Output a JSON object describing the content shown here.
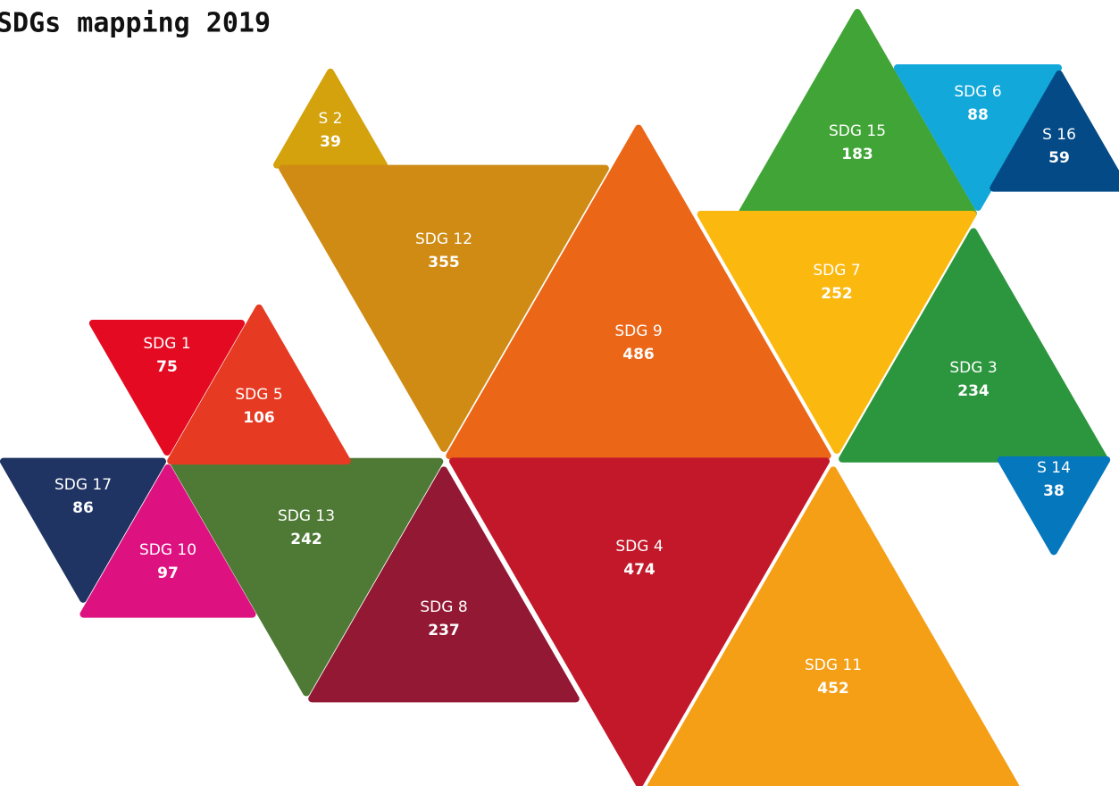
{
  "chart_data": {
    "type": "triangle-mosaic",
    "title": "SDGs mapping 2019",
    "categories": [
      "S 2",
      "SDG 12",
      "SDG 9",
      "SDG 15",
      "SDG 6",
      "S 16",
      "SDG 7",
      "SDG 3",
      "S 14",
      "SDG 11",
      "SDG 4",
      "SDG 8",
      "SDG 13",
      "SDG 1",
      "SDG 5",
      "SDG 17",
      "SDG 10"
    ],
    "values": [
      39,
      355,
      486,
      183,
      88,
      59,
      252,
      234,
      38,
      452,
      474,
      237,
      242,
      75,
      106,
      86,
      97
    ],
    "colors": [
      "#d3a20c",
      "#cf8b13",
      "#eb6617",
      "#40a536",
      "#12a8d9",
      "#034a86",
      "#fbb80f",
      "#2b963d",
      "#0577bd",
      "#f49f15",
      "#c2182a",
      "#921834",
      "#4f7a35",
      "#e30a21",
      "#e63a22",
      "#1f3463",
      "#dd1280"
    ]
  }
}
